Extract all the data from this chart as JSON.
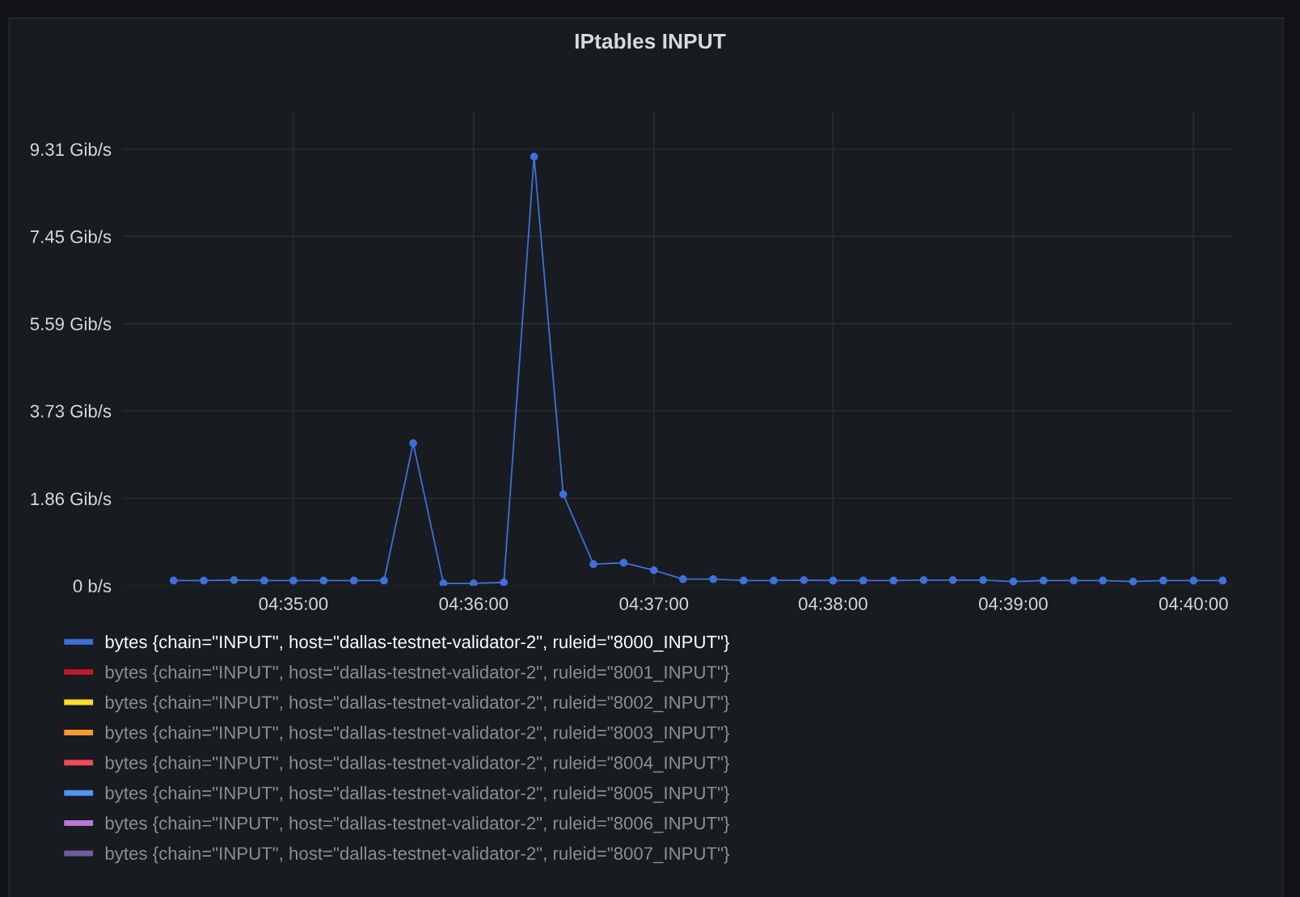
{
  "chart_data": {
    "type": "line",
    "title": "IPtables INPUT",
    "x": [
      4.5722,
      4.575,
      4.5778,
      4.5806,
      4.5833,
      4.5861,
      4.5889,
      4.5917,
      4.5944,
      4.5972,
      4.6,
      4.6028,
      4.6056,
      4.6083,
      4.6111,
      4.6139,
      4.6167,
      4.6194,
      4.6222,
      4.625,
      4.6278,
      4.6306,
      4.6333,
      4.6361,
      4.6389,
      4.6417,
      4.6444,
      4.6472,
      4.65,
      4.6528,
      4.6556,
      4.6583,
      4.6611,
      4.6639,
      4.6667,
      4.6694
    ],
    "series": [
      {
        "name": "bytes {chain=\"INPUT\", host=\"dallas-testnet-validator-2\", ruleid=\"8000_INPUT\"}",
        "color": "#3d71d9",
        "values": [
          0.11,
          0.11,
          0.12,
          0.11,
          0.11,
          0.11,
          0.11,
          0.11,
          3.04,
          0.05,
          0.05,
          0.07,
          9.15,
          1.95,
          0.46,
          0.49,
          0.33,
          0.14,
          0.14,
          0.11,
          0.11,
          0.12,
          0.11,
          0.11,
          0.11,
          0.12,
          0.12,
          0.12,
          0.09,
          0.11,
          0.11,
          0.11,
          0.09,
          0.11,
          0.11,
          0.11
        ]
      },
      {
        "name": "bytes {chain=\"INPUT\", host=\"dallas-testnet-validator-2\", ruleid=\"8001_INPUT\"}",
        "color": "#c4162a",
        "values": [
          null,
          null,
          null,
          null,
          null,
          null,
          null,
          null,
          null,
          null,
          null,
          null,
          null,
          null,
          null,
          null,
          null,
          null,
          null,
          null,
          null,
          null,
          null,
          null,
          null,
          null,
          null,
          null,
          null,
          null,
          null,
          null,
          null,
          null,
          null,
          null
        ]
      },
      {
        "name": "bytes {chain=\"INPUT\", host=\"dallas-testnet-validator-2\", ruleid=\"8002_INPUT\"}",
        "color": "#fade2a",
        "values": [
          null,
          null,
          null,
          null,
          null,
          null,
          null,
          null,
          null,
          null,
          null,
          null,
          null,
          null,
          null,
          null,
          null,
          null,
          null,
          null,
          null,
          null,
          null,
          null,
          null,
          null,
          null,
          null,
          null,
          null,
          null,
          null,
          null,
          null,
          null,
          null
        ]
      },
      {
        "name": "bytes {chain=\"INPUT\", host=\"dallas-testnet-validator-2\", ruleid=\"8003_INPUT\"}",
        "color": "#ff9830",
        "values": [
          null,
          null,
          null,
          null,
          null,
          null,
          null,
          null,
          null,
          null,
          null,
          null,
          null,
          null,
          null,
          null,
          null,
          null,
          null,
          null,
          null,
          null,
          null,
          null,
          null,
          null,
          null,
          null,
          null,
          null,
          null,
          null,
          null,
          null,
          null,
          null
        ]
      },
      {
        "name": "bytes {chain=\"INPUT\", host=\"dallas-testnet-validator-2\", ruleid=\"8004_INPUT\"}",
        "color": "#f2495c",
        "values": [
          null,
          null,
          null,
          null,
          null,
          null,
          null,
          null,
          null,
          null,
          null,
          null,
          null,
          null,
          null,
          null,
          null,
          null,
          null,
          null,
          null,
          null,
          null,
          null,
          null,
          null,
          null,
          null,
          null,
          null,
          null,
          null,
          null,
          null,
          null,
          null
        ]
      },
      {
        "name": "bytes {chain=\"INPUT\", host=\"dallas-testnet-validator-2\", ruleid=\"8005_INPUT\"}",
        "color": "#5794f2",
        "values": [
          null,
          null,
          null,
          null,
          null,
          null,
          null,
          null,
          null,
          null,
          null,
          null,
          null,
          null,
          null,
          null,
          null,
          null,
          null,
          null,
          null,
          null,
          null,
          null,
          null,
          null,
          null,
          null,
          null,
          null,
          null,
          null,
          null,
          null,
          null,
          null
        ]
      },
      {
        "name": "bytes {chain=\"INPUT\", host=\"dallas-testnet-validator-2\", ruleid=\"8006_INPUT\"}",
        "color": "#b877d9",
        "values": [
          null,
          null,
          null,
          null,
          null,
          null,
          null,
          null,
          null,
          null,
          null,
          null,
          null,
          null,
          null,
          null,
          null,
          null,
          null,
          null,
          null,
          null,
          null,
          null,
          null,
          null,
          null,
          null,
          null,
          null,
          null,
          null,
          null,
          null,
          null,
          null
        ]
      },
      {
        "name": "bytes {chain=\"INPUT\", host=\"dallas-testnet-validator-2\", ruleid=\"8007_INPUT\"}",
        "color": "#705da0",
        "values": [
          null,
          null,
          null,
          null,
          null,
          null,
          null,
          null,
          null,
          null,
          null,
          null,
          null,
          null,
          null,
          null,
          null,
          null,
          null,
          null,
          null,
          null,
          null,
          null,
          null,
          null,
          null,
          null,
          null,
          null,
          null,
          null,
          null,
          null,
          null,
          null
        ]
      }
    ],
    "xlim": [
      4.5675,
      4.6703
    ],
    "xticks": [
      {
        "value": 4.5833,
        "label": "04:35:00"
      },
      {
        "value": 4.6,
        "label": "04:36:00"
      },
      {
        "value": 4.6167,
        "label": "04:37:00"
      },
      {
        "value": 4.6333,
        "label": "04:38:00"
      },
      {
        "value": 4.65,
        "label": "04:39:00"
      },
      {
        "value": 4.6667,
        "label": "04:40:00"
      }
    ],
    "ylim": [
      0,
      10.12
    ],
    "yticks": [
      {
        "value": 0,
        "label": "0 b/s"
      },
      {
        "value": 1.86,
        "label": "1.86 Gib/s"
      },
      {
        "value": 3.73,
        "label": "3.73 Gib/s"
      },
      {
        "value": 5.59,
        "label": "5.59 Gib/s"
      },
      {
        "value": 7.45,
        "label": "7.45 Gib/s"
      },
      {
        "value": 9.31,
        "label": "9.31 Gib/s"
      }
    ],
    "grid": true,
    "legend": "bottom",
    "marker": "circle",
    "line_style": "solid"
  }
}
